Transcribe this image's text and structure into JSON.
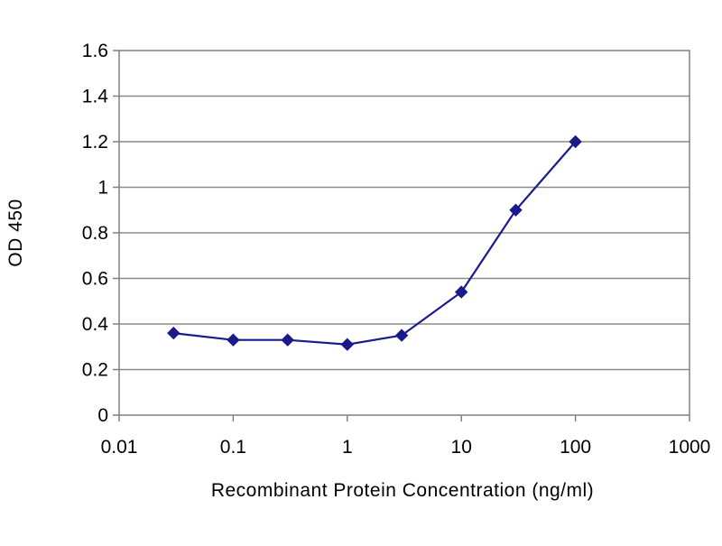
{
  "chart_data": {
    "type": "line",
    "xscale": "log",
    "xlabel": "Recombinant Protein Concentration (ng/ml)",
    "ylabel": "OD 450",
    "xlim": [
      0.01,
      1000
    ],
    "ylim": [
      0,
      1.6
    ],
    "x_ticks": [
      0.01,
      0.1,
      1,
      10,
      100,
      1000
    ],
    "x_tick_labels": [
      "0.01",
      "0.1",
      "1",
      "10",
      "100",
      "1000"
    ],
    "y_ticks": [
      0,
      0.2,
      0.4,
      0.6,
      0.8,
      1,
      1.2,
      1.4,
      1.6
    ],
    "y_tick_labels": [
      "0",
      "0.2",
      "0.4",
      "0.6",
      "0.8",
      "1",
      "1.2",
      "1.4",
      "1.6"
    ],
    "grid": "horizontal",
    "series": [
      {
        "color": "#1a1a8c",
        "marker": "diamond",
        "x": [
          0.03,
          0.1,
          0.3,
          1,
          3,
          10,
          30,
          100
        ],
        "y": [
          0.36,
          0.33,
          0.33,
          0.31,
          0.35,
          0.54,
          0.9,
          1.2
        ]
      }
    ]
  }
}
